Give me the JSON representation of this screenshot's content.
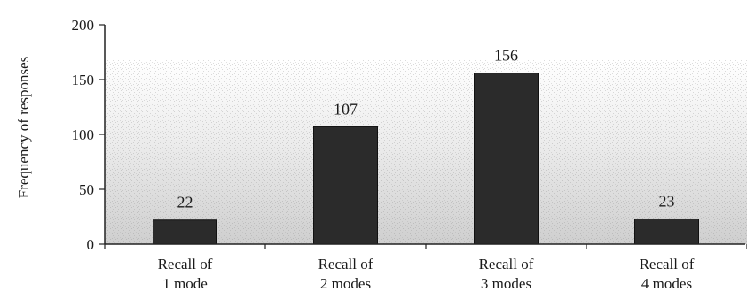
{
  "chart_data": {
    "type": "bar",
    "categories": [
      [
        "Recall of",
        "1 mode"
      ],
      [
        "Recall of",
        "2 modes"
      ],
      [
        "Recall of",
        "3 modes"
      ],
      [
        "Recall of",
        "4 modes"
      ]
    ],
    "values": [
      22,
      107,
      156,
      23
    ],
    "data_labels": [
      "22",
      "107",
      "156",
      "23"
    ],
    "title": "",
    "xlabel": "",
    "ylabel": "Frequency of responses",
    "ylim": [
      0,
      200
    ],
    "yticks": [
      0,
      50,
      100,
      150,
      200
    ],
    "ytick_labels": [
      "0",
      "50",
      "100",
      "150",
      "200"
    ],
    "grid": false,
    "legend": "none",
    "colors": {
      "bar": "#2b2b2b",
      "plot_background": "#d9d9d9",
      "axis": "#222222"
    }
  }
}
